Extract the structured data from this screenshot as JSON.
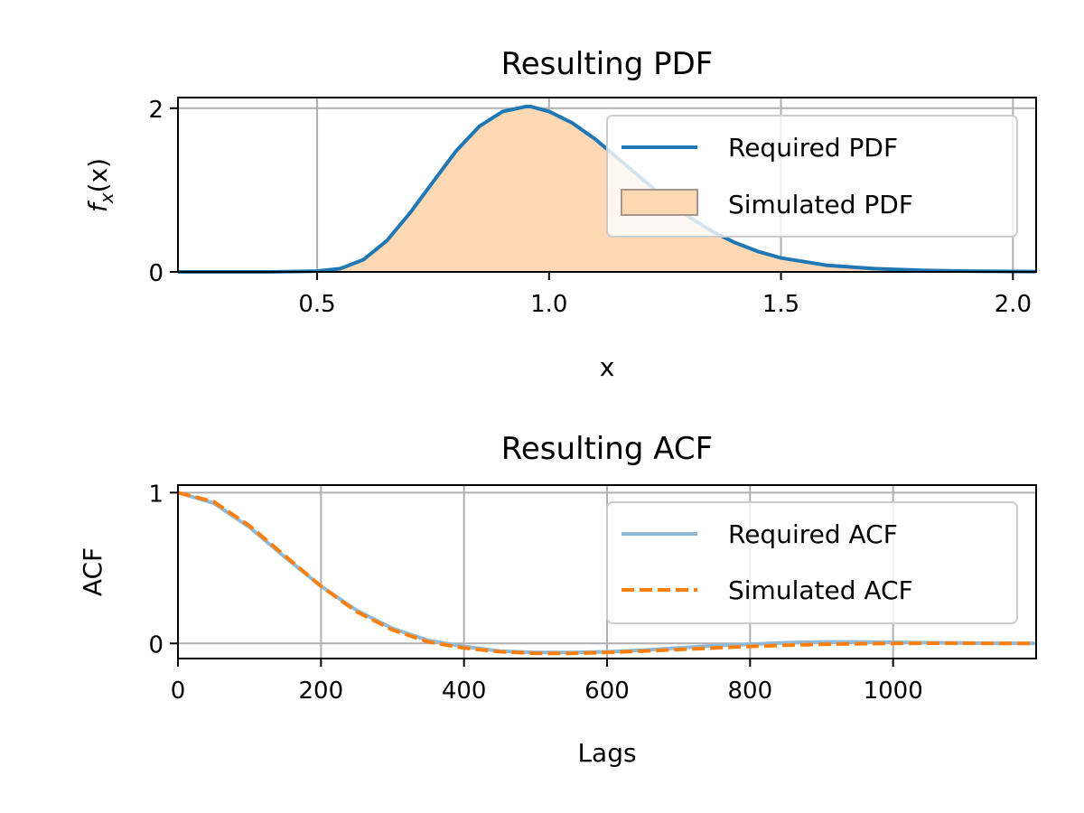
{
  "colors": {
    "required_pdf": "#1f77b4",
    "simulated_pdf_fill": "#ffd8b4",
    "simulated_pdf_edge": "#a6978a",
    "required_acf": "#8fbbd9",
    "simulated_acf": "#ff7f0e",
    "grid": "#b0b0b0"
  },
  "chart_data": [
    {
      "type": "line",
      "title": "Resulting PDF",
      "xlabel": "x",
      "ylabel": "f_x(x)",
      "ylabel_main": "f",
      "ylabel_sub": "x",
      "ylabel_rest": "(x)",
      "xlim": [
        0.2,
        2.05
      ],
      "ylim": [
        0,
        2.13
      ],
      "xticks": [
        0.5,
        1.0,
        1.5,
        2.0
      ],
      "xtick_labels": [
        "0.5",
        "1.0",
        "1.5",
        "2.0"
      ],
      "yticks": [
        0,
        2
      ],
      "ytick_labels": [
        "0",
        "2"
      ],
      "grid": true,
      "legend_position": "upper-right",
      "series": [
        {
          "name": "Required PDF",
          "kind": "line",
          "x": [
            0.2,
            0.3,
            0.4,
            0.5,
            0.55,
            0.6,
            0.65,
            0.7,
            0.75,
            0.8,
            0.85,
            0.9,
            0.95,
            0.96,
            1.0,
            1.05,
            1.1,
            1.15,
            1.2,
            1.25,
            1.3,
            1.35,
            1.4,
            1.45,
            1.5,
            1.6,
            1.7,
            1.8,
            1.9,
            2.0,
            2.05
          ],
          "y": [
            0,
            0,
            0,
            0.01,
            0.04,
            0.15,
            0.38,
            0.72,
            1.1,
            1.48,
            1.78,
            1.96,
            2.02,
            2.02,
            1.96,
            1.82,
            1.62,
            1.38,
            1.14,
            0.9,
            0.68,
            0.5,
            0.36,
            0.25,
            0.17,
            0.08,
            0.04,
            0.02,
            0.01,
            0.005,
            0.003
          ]
        },
        {
          "name": "Simulated PDF",
          "kind": "histogram",
          "x": [
            0.2,
            0.3,
            0.4,
            0.5,
            0.55,
            0.6,
            0.65,
            0.7,
            0.75,
            0.8,
            0.85,
            0.9,
            0.95,
            0.96,
            1.0,
            1.05,
            1.1,
            1.15,
            1.2,
            1.25,
            1.3,
            1.35,
            1.4,
            1.45,
            1.5,
            1.6,
            1.7,
            1.8,
            1.9,
            2.0,
            2.05
          ],
          "y": [
            0,
            0,
            0,
            0.01,
            0.04,
            0.15,
            0.38,
            0.72,
            1.1,
            1.48,
            1.78,
            1.96,
            2.02,
            2.02,
            1.96,
            1.82,
            1.62,
            1.38,
            1.14,
            0.9,
            0.68,
            0.5,
            0.36,
            0.25,
            0.17,
            0.08,
            0.04,
            0.02,
            0.01,
            0.005,
            0.003
          ]
        }
      ]
    },
    {
      "type": "line",
      "title": "Resulting ACF",
      "xlabel": "Lags",
      "ylabel": "ACF",
      "xlim": [
        0,
        1200
      ],
      "ylim": [
        -0.1,
        1.05
      ],
      "xticks": [
        0,
        200,
        400,
        600,
        800,
        1000
      ],
      "xtick_labels": [
        "0",
        "200",
        "400",
        "600",
        "800",
        "1000"
      ],
      "yticks": [
        0,
        1
      ],
      "ytick_labels": [
        "0",
        "1"
      ],
      "grid": true,
      "legend_position": "upper-right",
      "series": [
        {
          "name": "Required ACF",
          "kind": "line",
          "x": [
            0,
            50,
            100,
            150,
            200,
            250,
            300,
            350,
            400,
            450,
            500,
            550,
            600,
            650,
            700,
            750,
            800,
            850,
            900,
            950,
            1000,
            1050,
            1100,
            1150,
            1200
          ],
          "y": [
            1.0,
            0.93,
            0.77,
            0.57,
            0.38,
            0.22,
            0.1,
            0.02,
            -0.02,
            -0.05,
            -0.06,
            -0.06,
            -0.055,
            -0.045,
            -0.03,
            -0.015,
            -0.005,
            0.005,
            0.01,
            0.01,
            0.008,
            0.005,
            0.003,
            0.001,
            0.0
          ]
        },
        {
          "name": "Simulated ACF",
          "kind": "line",
          "x": [
            0,
            50,
            100,
            150,
            200,
            250,
            300,
            350,
            400,
            450,
            500,
            550,
            600,
            650,
            700,
            750,
            800,
            850,
            900,
            950,
            1000,
            1050,
            1100,
            1150,
            1200
          ],
          "y": [
            1.0,
            0.94,
            0.78,
            0.58,
            0.38,
            0.21,
            0.09,
            0.01,
            -0.03,
            -0.055,
            -0.065,
            -0.065,
            -0.06,
            -0.05,
            -0.04,
            -0.03,
            -0.02,
            -0.012,
            -0.006,
            -0.002,
            0.0,
            0.001,
            0.001,
            0.0,
            0.0
          ]
        }
      ]
    }
  ]
}
